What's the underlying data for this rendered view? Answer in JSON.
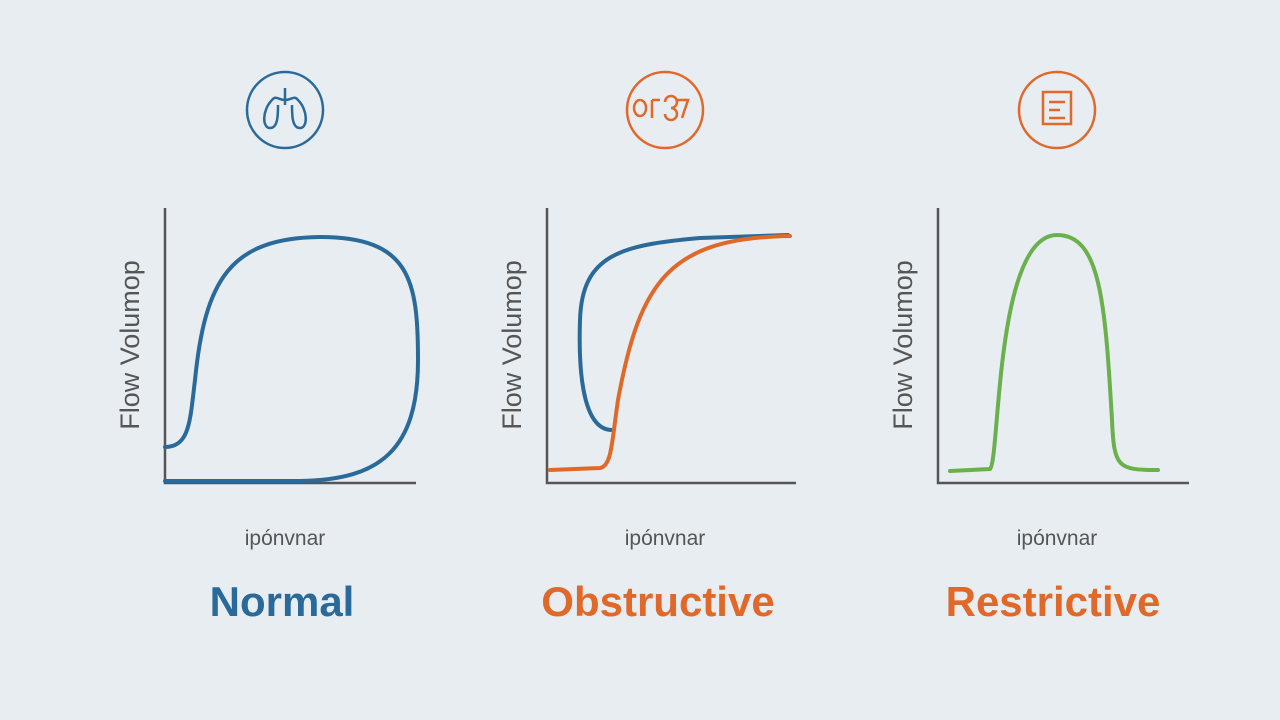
{
  "panels": [
    {
      "title": "Normal",
      "y_label": "Flow Volumop",
      "x_label": "ipónvnar"
    },
    {
      "title": "Obstructive",
      "y_label": "Flow Volumop",
      "x_label": "ipónvnar"
    },
    {
      "title": "Restrictive",
      "y_label": "Flow Volumop",
      "x_label": "ipónvnar"
    }
  ]
}
